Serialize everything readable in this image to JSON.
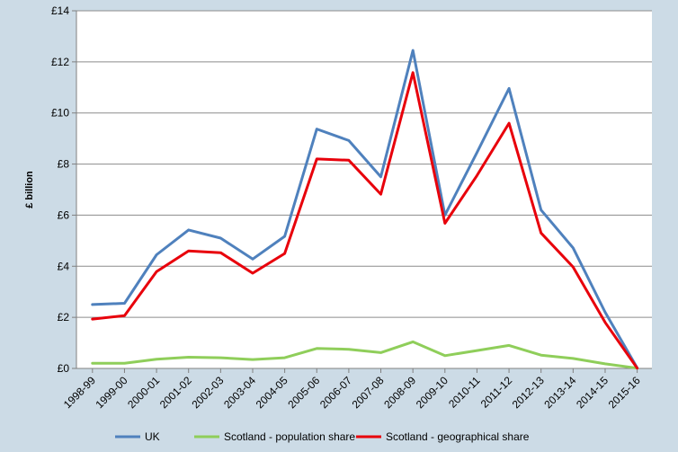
{
  "chart_data": {
    "type": "line",
    "ylabel": "£ billion",
    "ylim": [
      0,
      14
    ],
    "y_ticks": [
      0,
      2,
      4,
      6,
      8,
      10,
      12,
      14
    ],
    "y_tick_prefix": "£",
    "categories": [
      "1998-99",
      "1999-00",
      "2000-01",
      "2001-02",
      "2002-03",
      "2003-04",
      "2004-05",
      "2005-06",
      "2006-07",
      "2007-08",
      "2008-09",
      "2009-10",
      "2010-11",
      "2011-12",
      "2012-13",
      "2013-14",
      "2014-15",
      "2015-16"
    ],
    "series": [
      {
        "name": "UK",
        "color": "#4f81bd",
        "values": [
          2.5,
          2.55,
          4.45,
          5.42,
          5.1,
          4.28,
          5.17,
          9.37,
          8.92,
          7.5,
          12.45,
          6.0,
          8.45,
          10.96,
          6.2,
          4.72,
          2.2,
          0.02
        ]
      },
      {
        "name": "Scotland - population share",
        "color": "#8fce5a",
        "values": [
          0.2,
          0.2,
          0.36,
          0.44,
          0.42,
          0.35,
          0.42,
          0.78,
          0.75,
          0.62,
          1.04,
          0.5,
          0.7,
          0.9,
          0.52,
          0.39,
          0.18,
          0.01
        ]
      },
      {
        "name": "Scotland - geographical share",
        "color": "#e8000b",
        "values": [
          1.93,
          2.07,
          3.79,
          4.6,
          4.53,
          3.73,
          4.5,
          8.2,
          8.15,
          6.82,
          11.58,
          5.68,
          7.55,
          9.6,
          5.3,
          3.97,
          1.8,
          0.01
        ]
      }
    ],
    "grid": true,
    "legend_position": "bottom"
  }
}
